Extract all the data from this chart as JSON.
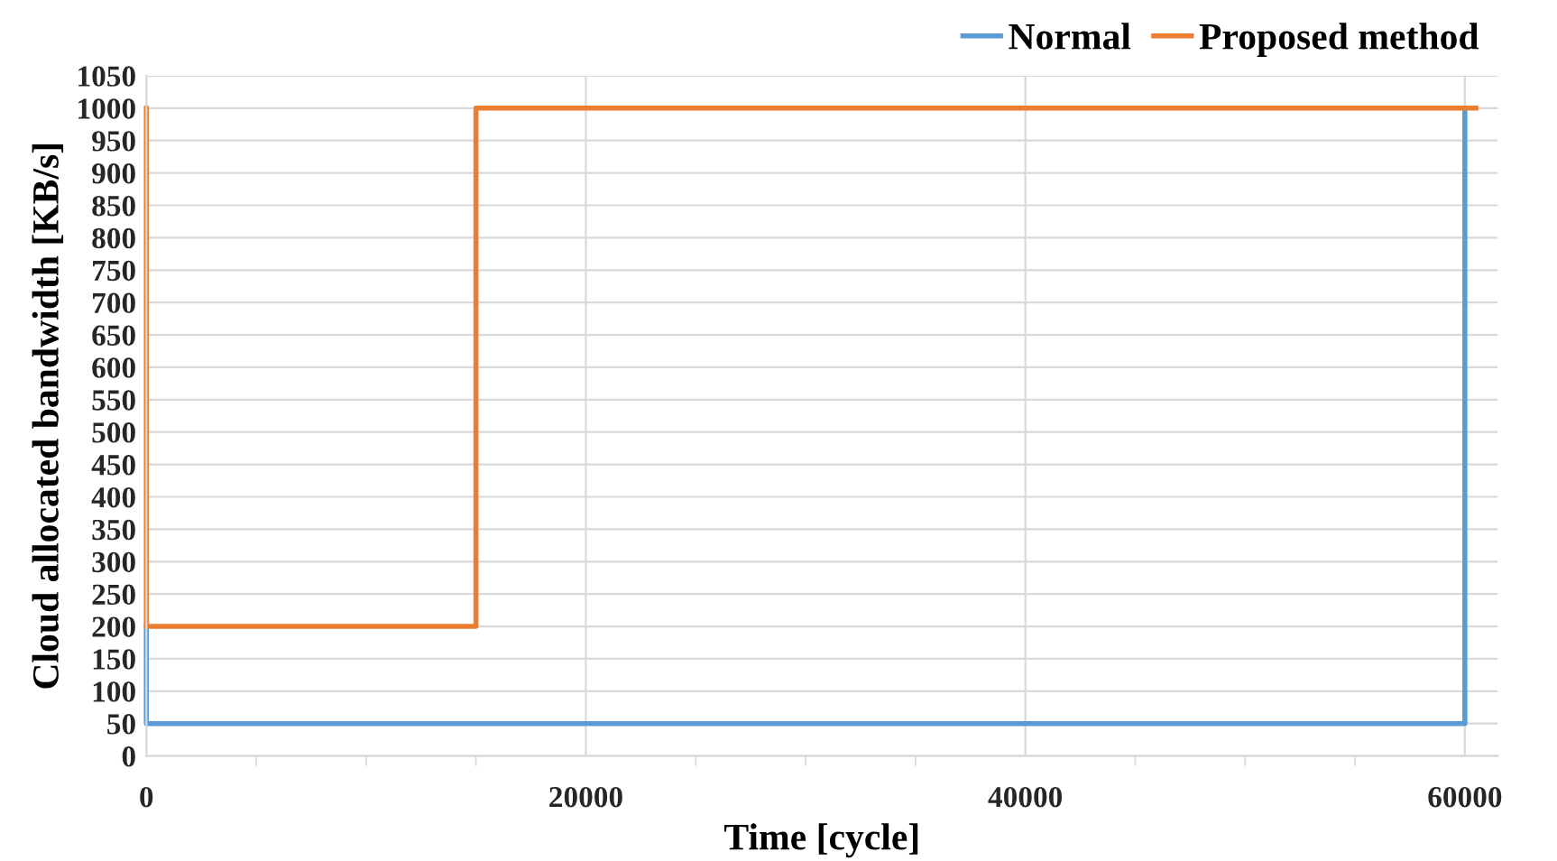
{
  "chart_data": {
    "type": "line",
    "xlabel": "Time [cycle]",
    "ylabel": "Cloud allocated bandwidth [KB/s]",
    "series": [
      {
        "name": "Normal",
        "color": "#5b9bd5",
        "x": [
          0,
          0,
          60000,
          60000
        ],
        "values": [
          200,
          50,
          50,
          1000
        ]
      },
      {
        "name": "Proposed method",
        "color": "#ed7d31",
        "x": [
          0,
          0,
          15000,
          15000,
          60500
        ],
        "values": [
          1000,
          200,
          200,
          1000,
          1000
        ]
      }
    ],
    "xlim": [
      0,
      61500
    ],
    "xticks": [
      0,
      {
        "value": 5000,
        "label": null
      },
      {
        "value": 10000,
        "label": null
      },
      {
        "value": 15000,
        "label": null
      },
      20000,
      {
        "value": 25000,
        "label": null
      },
      {
        "value": 30000,
        "label": null
      },
      {
        "value": 35000,
        "label": null
      },
      40000,
      {
        "value": 45000,
        "label": null
      },
      {
        "value": 50000,
        "label": null
      },
      {
        "value": 55000,
        "label": null
      },
      60000
    ],
    "ylim": [
      0,
      1050
    ],
    "yticks": [
      0,
      50,
      100,
      150,
      200,
      250,
      300,
      350,
      400,
      450,
      500,
      550,
      600,
      650,
      700,
      750,
      800,
      850,
      900,
      950,
      1000,
      1050
    ],
    "grid": true,
    "legend": "top right",
    "marker": "none",
    "line_style": "solid"
  }
}
